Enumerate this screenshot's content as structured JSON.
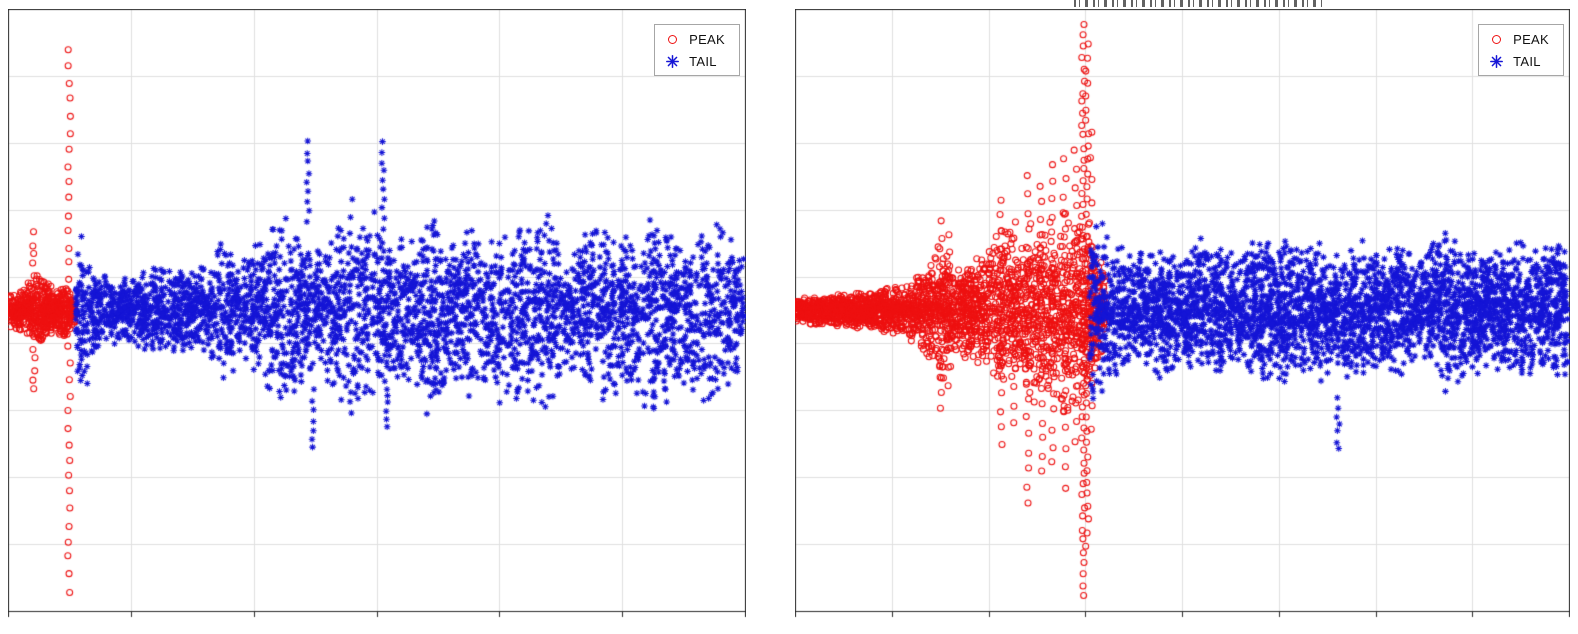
{
  "figure": {
    "background": "#ffffff",
    "axis_color": "#2a2a2a",
    "clipped_title_fragment": "illegible title text clipped at top edge of right plot"
  },
  "chart_data": [
    {
      "id": "left-plot",
      "type": "scatter",
      "title": "",
      "xlabel": "",
      "ylabel": "",
      "x_range": [
        0,
        1
      ],
      "y_range": [
        -1,
        1
      ],
      "grid": {
        "on": true,
        "x_divisions": 6,
        "y_divisions": 9,
        "color": "#e0e0e0"
      },
      "legend": {
        "position": "top-right",
        "entries": [
          {
            "label": "PEAK",
            "marker": "circle",
            "color": "#ee1111"
          },
          {
            "label": "TAIL",
            "marker": "asterisk",
            "color": "#1515d6"
          }
        ]
      },
      "seed": 7,
      "series": [
        {
          "name": "PEAK",
          "marker": "circle",
          "color": "#ee1111",
          "band": {
            "x": [
              0.0,
              0.02,
              0.04,
              0.06,
              0.075,
              0.09
            ],
            "envelope": [
              0.06,
              0.08,
              0.13,
              0.08,
              0.1,
              0.05
            ],
            "density": 600
          },
          "columns": [
            {
              "x": 0.034,
              "y_min": -0.27,
              "y_max": 0.26,
              "count": 16
            },
            {
              "x": 0.082,
              "y_min": -0.95,
              "y_max": 0.88,
              "count": 34
            }
          ]
        },
        {
          "name": "TAIL",
          "marker": "asterisk",
          "color": "#1515d6",
          "band": {
            "x": [
              0.09,
              0.095,
              0.105,
              0.12,
              0.15,
              0.18,
              0.21,
              0.24,
              0.27,
              0.295,
              0.31,
              0.33,
              0.36,
              0.385,
              0.4,
              0.42,
              0.445,
              0.47,
              0.5,
              0.52,
              0.545,
              0.57,
              0.6,
              0.625,
              0.65,
              0.68,
              0.705,
              0.73,
              0.755,
              0.78,
              0.81,
              0.835,
              0.86,
              0.885,
              0.91,
              0.935,
              0.96,
              0.98,
              1.0
            ],
            "envelope": [
              0.05,
              0.3,
              0.28,
              0.14,
              0.12,
              0.14,
              0.17,
              0.14,
              0.18,
              0.28,
              0.17,
              0.22,
              0.33,
              0.38,
              0.25,
              0.22,
              0.3,
              0.42,
              0.33,
              0.24,
              0.3,
              0.42,
              0.28,
              0.33,
              0.26,
              0.38,
              0.3,
              0.36,
              0.24,
              0.28,
              0.35,
              0.26,
              0.33,
              0.38,
              0.28,
              0.33,
              0.36,
              0.28,
              0.22
            ],
            "density": 3600
          },
          "columns": [
            {
              "x": 0.407,
              "y_min": 0.3,
              "y_max": 0.57,
              "count": 9
            },
            {
              "x": 0.414,
              "y_min": -0.47,
              "y_max": -0.27,
              "count": 7
            },
            {
              "x": 0.509,
              "y_min": 0.28,
              "y_max": 0.57,
              "count": 10
            },
            {
              "x": 0.515,
              "y_min": -0.4,
              "y_max": -0.26,
              "count": 6
            }
          ]
        }
      ]
    },
    {
      "id": "right-plot",
      "type": "scatter",
      "title": "",
      "xlabel": "",
      "ylabel": "",
      "x_range": [
        0,
        1
      ],
      "y_range": [
        -1,
        1
      ],
      "grid": {
        "on": true,
        "x_divisions": 8,
        "y_divisions": 9,
        "color": "#e0e0e0"
      },
      "legend": {
        "position": "top-right",
        "entries": [
          {
            "label": "PEAK",
            "marker": "circle",
            "color": "#ee1111"
          },
          {
            "label": "TAIL",
            "marker": "asterisk",
            "color": "#1515d6"
          }
        ]
      },
      "seed": 13,
      "series": [
        {
          "name": "PEAK",
          "marker": "circle",
          "color": "#ee1111",
          "band": {
            "x": [
              0.0,
              0.03,
              0.06,
              0.09,
              0.12,
              0.145,
              0.17,
              0.19,
              0.21,
              0.23,
              0.25,
              0.27,
              0.29,
              0.31,
              0.33,
              0.35,
              0.37,
              0.385,
              0.4
            ],
            "envelope": [
              0.045,
              0.05,
              0.055,
              0.065,
              0.08,
              0.1,
              0.18,
              0.26,
              0.15,
              0.18,
              0.24,
              0.3,
              0.26,
              0.34,
              0.3,
              0.36,
              0.32,
              0.26,
              0.14
            ],
            "density": 2600
          },
          "columns": [
            {
              "x": 0.188,
              "y_min": -0.33,
              "y_max": 0.3,
              "count": 14
            },
            {
              "x": 0.197,
              "y_min": -0.25,
              "y_max": 0.25,
              "count": 10
            },
            {
              "x": 0.265,
              "y_min": -0.45,
              "y_max": 0.38,
              "count": 16
            },
            {
              "x": 0.283,
              "y_min": -0.38,
              "y_max": 0.3,
              "count": 12
            },
            {
              "x": 0.3,
              "y_min": -0.65,
              "y_max": 0.45,
              "count": 20
            },
            {
              "x": 0.318,
              "y_min": -0.55,
              "y_max": 0.42,
              "count": 18
            },
            {
              "x": 0.333,
              "y_min": -0.52,
              "y_max": 0.5,
              "count": 18
            },
            {
              "x": 0.348,
              "y_min": -0.6,
              "y_max": 0.52,
              "count": 18
            },
            {
              "x": 0.362,
              "y_min": -0.45,
              "y_max": 0.55,
              "count": 16
            },
            {
              "x": 0.372,
              "y_min": -0.97,
              "y_max": 0.97,
              "count": 52
            },
            {
              "x": 0.377,
              "y_min": -0.8,
              "y_max": 0.9,
              "count": 40
            },
            {
              "x": 0.382,
              "y_min": -0.4,
              "y_max": 0.6,
              "count": 14
            }
          ]
        },
        {
          "name": "TAIL",
          "marker": "asterisk",
          "color": "#1515d6",
          "band": {
            "x": [
              0.38,
              0.39,
              0.41,
              0.44,
              0.47,
              0.5,
              0.53,
              0.56,
              0.59,
              0.62,
              0.65,
              0.68,
              0.7,
              0.72,
              0.75,
              0.78,
              0.81,
              0.84,
              0.87,
              0.9,
              0.93,
              0.96,
              0.98,
              1.0
            ],
            "envelope": [
              0.3,
              0.33,
              0.25,
              0.2,
              0.24,
              0.2,
              0.26,
              0.2,
              0.24,
              0.28,
              0.22,
              0.26,
              0.2,
              0.26,
              0.22,
              0.26,
              0.2,
              0.3,
              0.24,
              0.2,
              0.26,
              0.22,
              0.26,
              0.24
            ],
            "density": 3400
          },
          "columns": [
            {
              "x": 0.702,
              "y_min": -0.47,
              "y_max": -0.3,
              "count": 7
            }
          ]
        }
      ]
    }
  ]
}
